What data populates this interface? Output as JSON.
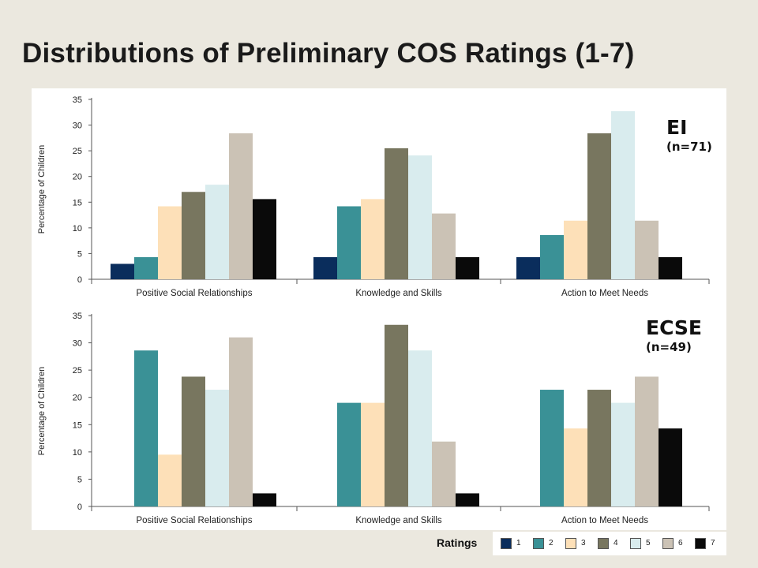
{
  "title": "Distributions of Preliminary COS Ratings (1-7)",
  "legend": {
    "title": "Ratings",
    "items": [
      "1",
      "2",
      "3",
      "4",
      "5",
      "6",
      "7"
    ],
    "colors": [
      "#0a2d5c",
      "#3a9196",
      "#fde0b8",
      "#78765f",
      "#d9ecee",
      "#cbc2b5",
      "#0a0a0a"
    ]
  },
  "panels": [
    {
      "label": "EI",
      "sublabel": "(n=71)"
    },
    {
      "label": "ECSE",
      "sublabel": "(n=49)"
    }
  ],
  "chart_data": [
    {
      "type": "bar",
      "categories": [
        "Positive Social Relationships",
        "Knowledge and Skills",
        "Action to Meet Needs"
      ],
      "series": [
        {
          "name": "1",
          "values": [
            3,
            4.3,
            4.3
          ]
        },
        {
          "name": "2",
          "values": [
            4.3,
            14.2,
            8.6
          ]
        },
        {
          "name": "3",
          "values": [
            14.2,
            15.6,
            11.4
          ]
        },
        {
          "name": "4",
          "values": [
            17,
            25.5,
            28.4
          ]
        },
        {
          "name": "5",
          "values": [
            18.4,
            24.1,
            32.7
          ]
        },
        {
          "name": "6",
          "values": [
            28.4,
            12.8,
            11.4
          ]
        },
        {
          "name": "7",
          "values": [
            15.6,
            4.3,
            4.3
          ]
        }
      ],
      "ylabel": "Percentage of Children",
      "ylim": [
        0,
        35
      ],
      "yticks": [
        "0",
        "5",
        "10",
        "15",
        "20",
        "25",
        "30",
        "35"
      ]
    },
    {
      "type": "bar",
      "categories": [
        "Positive Social Relationships",
        "Knowledge and Skills",
        "Action to Meet Needs"
      ],
      "series": [
        {
          "name": "1",
          "values": [
            0,
            0,
            0
          ]
        },
        {
          "name": "2",
          "values": [
            28.6,
            19,
            21.4
          ]
        },
        {
          "name": "3",
          "values": [
            9.5,
            19,
            14.3
          ]
        },
        {
          "name": "4",
          "values": [
            23.8,
            33.3,
            21.4
          ]
        },
        {
          "name": "5",
          "values": [
            21.4,
            28.6,
            19
          ]
        },
        {
          "name": "6",
          "values": [
            31,
            11.9,
            23.8
          ]
        },
        {
          "name": "7",
          "values": [
            2.4,
            2.4,
            14.3
          ]
        }
      ],
      "ylabel": "Percentage of Children",
      "ylim": [
        0,
        35
      ],
      "yticks": [
        "0",
        "5",
        "10",
        "15",
        "20",
        "25",
        "30",
        "35"
      ]
    }
  ]
}
